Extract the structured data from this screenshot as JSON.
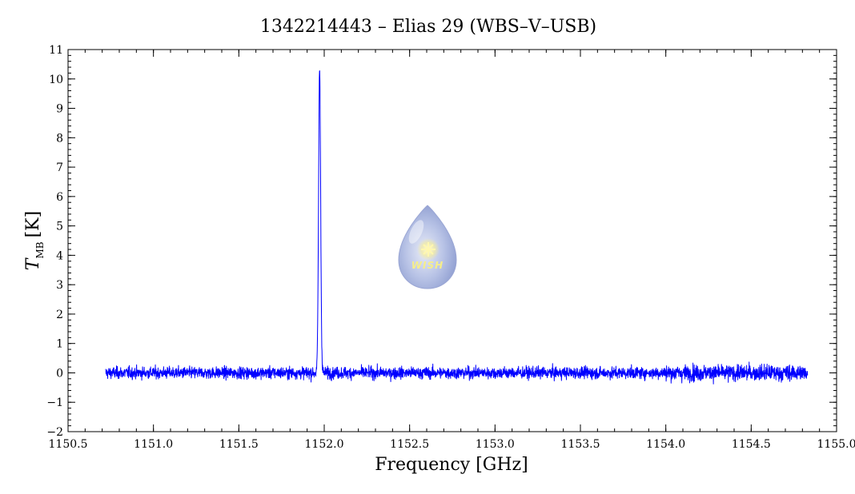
{
  "chart_data": {
    "type": "line",
    "title": "1342214443 – Elias 29 (WBS–V–USB)",
    "xlabel": "Frequency [GHz]",
    "ylabel_main": "T",
    "ylabel_sub": "MB",
    "ylabel_unit": "[K]",
    "xlim": [
      1150.5,
      1155.0
    ],
    "ylim": [
      -2,
      11
    ],
    "x_major_ticks": [
      1150.5,
      1151.0,
      1151.5,
      1152.0,
      1152.5,
      1153.0,
      1153.5,
      1154.0,
      1154.5,
      1155.0
    ],
    "x_tick_labels": [
      "1150.5",
      "1151.0",
      "1151.5",
      "1152.0",
      "1152.5",
      "1153.0",
      "1153.5",
      "1154.0",
      "1154.5",
      "1155.0"
    ],
    "y_major_ticks": [
      -2,
      -1,
      0,
      1,
      2,
      3,
      4,
      5,
      6,
      7,
      8,
      9,
      10,
      11
    ],
    "y_tick_labels": [
      "−2",
      "−1",
      "0",
      "1",
      "2",
      "3",
      "4",
      "5",
      "6",
      "7",
      "8",
      "9",
      "10",
      "11"
    ],
    "grid": false,
    "series": [
      {
        "color": "#0000ff",
        "x_range": [
          1150.72,
          1154.83
        ],
        "baseline": 0.0,
        "noise_rms": 0.2,
        "peaks": [
          {
            "x": 1151.973,
            "y": 10.35
          }
        ],
        "points": [
          [
            1150.72,
            0.1
          ],
          [
            1150.9,
            0.0
          ],
          [
            1151.1,
            0.05
          ],
          [
            1151.3,
            -0.05
          ],
          [
            1151.5,
            0.0
          ],
          [
            1151.7,
            0.05
          ],
          [
            1151.9,
            0.0
          ],
          [
            1151.94,
            0.8
          ],
          [
            1151.96,
            4.4
          ],
          [
            1151.973,
            10.35
          ],
          [
            1151.985,
            5.9
          ],
          [
            1152.0,
            1.1
          ],
          [
            1152.03,
            0.1
          ],
          [
            1152.3,
            0.0
          ],
          [
            1152.6,
            0.0
          ],
          [
            1152.9,
            0.05
          ],
          [
            1153.2,
            0.0
          ],
          [
            1153.5,
            0.0
          ],
          [
            1153.8,
            0.0
          ],
          [
            1154.1,
            0.0
          ],
          [
            1154.4,
            0.0
          ],
          [
            1154.6,
            0.05
          ],
          [
            1154.83,
            0.1
          ]
        ]
      }
    ]
  },
  "watermark": {
    "text": "WISH",
    "icon": "water-drop-star-logo"
  }
}
